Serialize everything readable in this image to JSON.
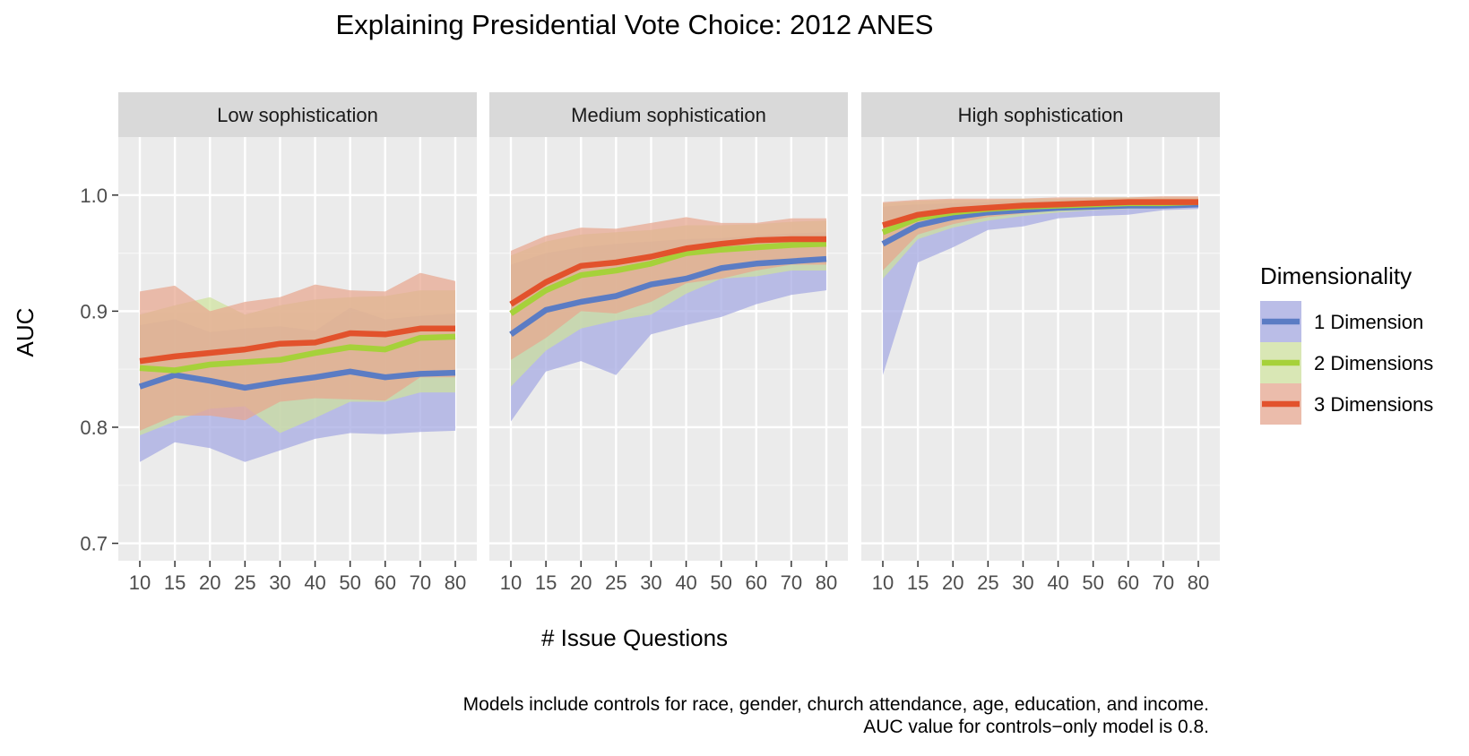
{
  "chart_data": {
    "type": "line",
    "title": "Explaining Presidential Vote Choice: 2012 ANES",
    "xlabel": "# Issue Questions",
    "ylabel": "AUC",
    "x_categories": [
      "10",
      "15",
      "20",
      "25",
      "30",
      "40",
      "50",
      "60",
      "70",
      "80"
    ],
    "ylim": [
      0.685,
      1.05
    ],
    "y_ticks": [
      0.7,
      0.8,
      0.9,
      1.0
    ],
    "y_tick_labels": [
      "0.7",
      "0.8",
      "0.9",
      "1.0"
    ],
    "grid": true,
    "legend": {
      "title": "Dimensionality",
      "placement": "right",
      "entries": [
        "1 Dimension",
        "2 Dimensions",
        "3 Dimensions"
      ]
    },
    "colors": {
      "1 Dimension": "#5b7cc4",
      "2 Dimensions": "#a6d13a",
      "3 Dimensions": "#e2522c",
      "1 Dimension_band": "#a4a8e2",
      "2 Dimensions_band": "#cfe29d",
      "3 Dimensions_band": "#e8a68f"
    },
    "panels": [
      {
        "label": "Low sophistication",
        "series": [
          {
            "name": "1 Dimension",
            "values": [
              0.835,
              0.845,
              0.84,
              0.834,
              0.839,
              0.843,
              0.848,
              0.843,
              0.846,
              0.847
            ],
            "lower": [
              0.77,
              0.787,
              0.782,
              0.77,
              0.78,
              0.79,
              0.795,
              0.794,
              0.796,
              0.797
            ],
            "upper": [
              0.888,
              0.893,
              0.882,
              0.885,
              0.887,
              0.883,
              0.903,
              0.893,
              0.896,
              0.898
            ]
          },
          {
            "name": "2 Dimensions",
            "values": [
              0.851,
              0.849,
              0.854,
              0.856,
              0.858,
              0.864,
              0.869,
              0.867,
              0.877,
              0.878
            ],
            "lower": [
              0.793,
              0.805,
              0.816,
              0.818,
              0.795,
              0.808,
              0.822,
              0.822,
              0.83,
              0.83
            ],
            "upper": [
              0.897,
              0.905,
              0.912,
              0.897,
              0.905,
              0.91,
              0.912,
              0.913,
              0.918,
              0.918
            ]
          },
          {
            "name": "3 Dimensions",
            "values": [
              0.857,
              0.861,
              0.864,
              0.867,
              0.872,
              0.873,
              0.881,
              0.88,
              0.885,
              0.885
            ],
            "lower": [
              0.797,
              0.81,
              0.81,
              0.806,
              0.822,
              0.825,
              0.824,
              0.823,
              0.843,
              0.843
            ],
            "upper": [
              0.917,
              0.922,
              0.9,
              0.908,
              0.912,
              0.923,
              0.918,
              0.917,
              0.933,
              0.926
            ]
          }
        ]
      },
      {
        "label": "Medium sophistication",
        "series": [
          {
            "name": "1 Dimension",
            "values": [
              0.88,
              0.901,
              0.908,
              0.913,
              0.923,
              0.928,
              0.937,
              0.941,
              0.943,
              0.945
            ],
            "lower": [
              0.805,
              0.848,
              0.857,
              0.845,
              0.88,
              0.888,
              0.895,
              0.906,
              0.914,
              0.918
            ],
            "upper": [
              0.94,
              0.95,
              0.955,
              0.958,
              0.96,
              0.962,
              0.963,
              0.965,
              0.967,
              0.968
            ]
          },
          {
            "name": "2 Dimensions",
            "values": [
              0.898,
              0.918,
              0.931,
              0.935,
              0.941,
              0.95,
              0.953,
              0.955,
              0.957,
              0.958
            ],
            "lower": [
              0.835,
              0.866,
              0.885,
              0.892,
              0.897,
              0.915,
              0.928,
              0.93,
              0.935,
              0.935
            ],
            "upper": [
              0.948,
              0.96,
              0.966,
              0.968,
              0.97,
              0.974,
              0.974,
              0.975,
              0.977,
              0.978
            ]
          },
          {
            "name": "3 Dimensions",
            "values": [
              0.906,
              0.925,
              0.939,
              0.942,
              0.947,
              0.954,
              0.958,
              0.961,
              0.962,
              0.962
            ],
            "lower": [
              0.858,
              0.877,
              0.9,
              0.898,
              0.908,
              0.924,
              0.928,
              0.935,
              0.94,
              0.94
            ],
            "upper": [
              0.952,
              0.965,
              0.972,
              0.971,
              0.976,
              0.981,
              0.976,
              0.976,
              0.98,
              0.98
            ]
          }
        ]
      },
      {
        "label": "High sophistication",
        "series": [
          {
            "name": "1 Dimension",
            "values": [
              0.958,
              0.974,
              0.981,
              0.985,
              0.987,
              0.989,
              0.99,
              0.991,
              0.991,
              0.992
            ],
            "lower": [
              0.845,
              0.942,
              0.955,
              0.97,
              0.973,
              0.98,
              0.982,
              0.983,
              0.987,
              0.988
            ],
            "upper": [
              0.99,
              0.992,
              0.993,
              0.994,
              0.995,
              0.996,
              0.996,
              0.997,
              0.997,
              0.997
            ]
          },
          {
            "name": "2 Dimensions",
            "values": [
              0.968,
              0.98,
              0.985,
              0.988,
              0.99,
              0.991,
              0.992,
              0.993,
              0.993,
              0.994
            ],
            "lower": [
              0.928,
              0.962,
              0.972,
              0.978,
              0.982,
              0.985,
              0.987,
              0.988,
              0.989,
              0.99
            ],
            "upper": [
              0.993,
              0.995,
              0.996,
              0.996,
              0.997,
              0.997,
              0.998,
              0.998,
              0.998,
              0.998
            ]
          },
          {
            "name": "3 Dimensions",
            "values": [
              0.974,
              0.983,
              0.987,
              0.989,
              0.991,
              0.992,
              0.993,
              0.994,
              0.994,
              0.994
            ],
            "lower": [
              0.935,
              0.966,
              0.975,
              0.981,
              0.984,
              0.987,
              0.988,
              0.989,
              0.99,
              0.991
            ],
            "upper": [
              0.994,
              0.996,
              0.997,
              0.997,
              0.997,
              0.998,
              0.998,
              0.998,
              0.999,
              0.999
            ]
          }
        ]
      }
    ],
    "caption_lines": [
      "Models include controls for race, gender, church attendance, age, education, and income.",
      "AUC value for controls−only model is 0.8."
    ]
  }
}
